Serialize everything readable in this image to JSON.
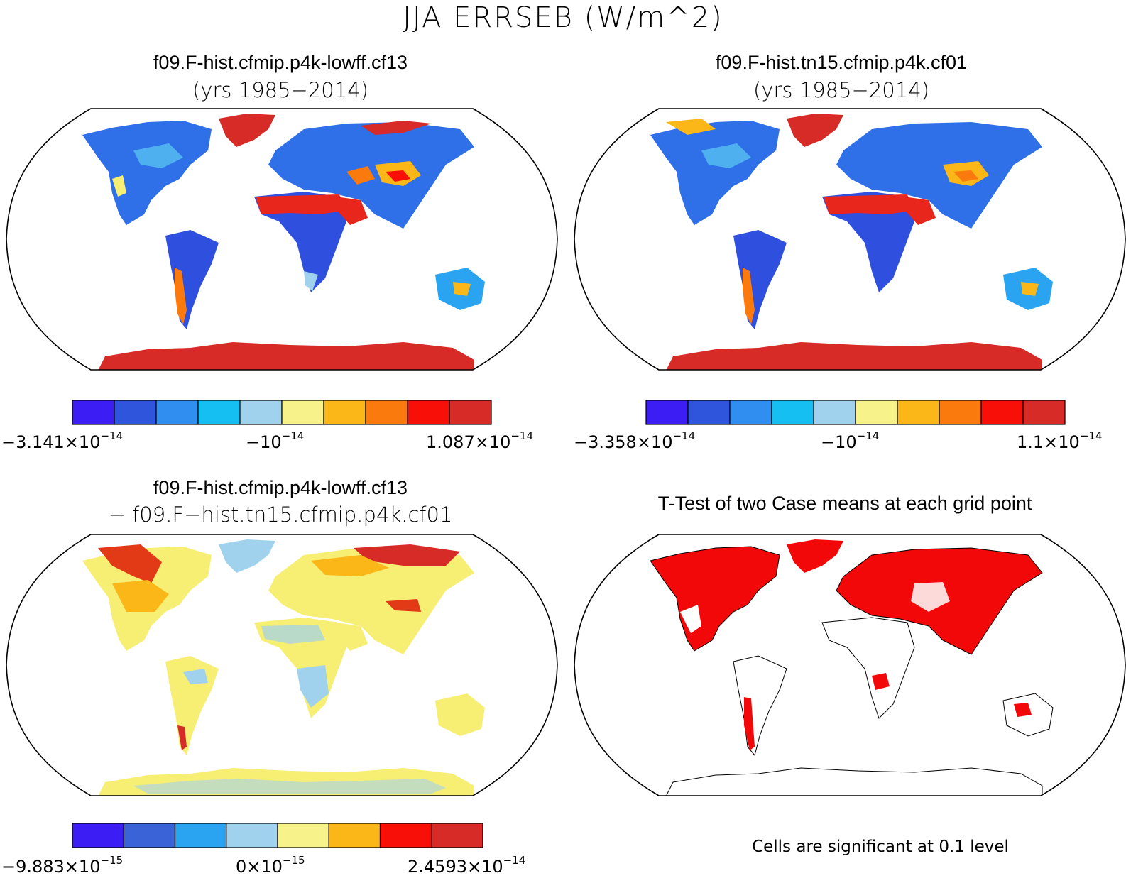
{
  "title": "JJA ERRSEB (W/m^2)",
  "panels": [
    {
      "id": "case1",
      "title": "f09.F-hist.cfmip.p4k-lowff.cf13",
      "subtitle": "(yrs 1985−2014)",
      "colorbar": {
        "colors": [
          "#3c1ef5",
          "#2f55dc",
          "#2f8ef0",
          "#15bff2",
          "#a0d2ee",
          "#f7f28a",
          "#fbb617",
          "#fa7a0e",
          "#f70f08",
          "#d62b26"
        ],
        "labels": [
          {
            "mant": "−3.141×10",
            "exp": "−14"
          },
          {
            "mant": "−10",
            "exp": "−14"
          },
          {
            "mant": "1.087×10",
            "exp": "−14"
          }
        ]
      }
    },
    {
      "id": "case2",
      "title": "f09.F-hist.tn15.cfmip.p4k.cf01",
      "subtitle": "(yrs 1985−2014)",
      "colorbar": {
        "colors": [
          "#3c1ef5",
          "#2f55dc",
          "#2f8ef0",
          "#15bff2",
          "#a0d2ee",
          "#f7f28a",
          "#fbb617",
          "#fa7a0e",
          "#f70f08",
          "#d62b26"
        ],
        "labels": [
          {
            "mant": "−3.358×10",
            "exp": "−14"
          },
          {
            "mant": "−10",
            "exp": "−14"
          },
          {
            "mant": "1.1×10",
            "exp": "−14"
          }
        ]
      }
    },
    {
      "id": "diff",
      "title": "f09.F-hist.cfmip.p4k-lowff.cf13",
      "subtitle": "− f09.F−hist.tn15.cfmip.p4k.cf01",
      "colorbar": {
        "colors": [
          "#3c1ef5",
          "#3a63d8",
          "#2aa4f0",
          "#a0d2ee",
          "#f7f28a",
          "#fbb617",
          "#f70f08",
          "#d62b26"
        ],
        "labels": [
          {
            "mant": "−9.883×10",
            "exp": "−15"
          },
          {
            "mant": "0×10",
            "exp": "−15"
          },
          {
            "mant": "2.4593×10",
            "exp": "−14"
          }
        ]
      }
    },
    {
      "id": "ttest",
      "title": "T-Test of two Case means at each grid point",
      "note": "Cells are significant at 0.1 level"
    }
  ],
  "map_palette": {
    "ocean": "#ffffff",
    "cool_land": "#2f6fe8",
    "hot_desert": "#e8261c",
    "ice": "#d62b26",
    "diff_land": "#f7ee74",
    "diff_cool": "#a0d2ee",
    "diff_hot": "#e23a16",
    "signif": "#f20808"
  }
}
